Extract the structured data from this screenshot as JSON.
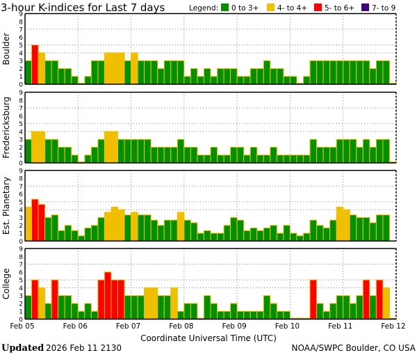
{
  "chart_data": {
    "type": "bar",
    "title": "3-hour K-indices for Last 7 days",
    "legend": {
      "label": "Legend:",
      "placement": "top-right",
      "entries": [
        {
          "label": "0 to 3+",
          "color": "#009000"
        },
        {
          "label": "4- to 4+",
          "color": "#f0c000"
        },
        {
          "label": "5- to 6+",
          "color": "#ff0000"
        },
        {
          "label": "7- to 9",
          "color": "#400080"
        }
      ]
    },
    "xlabel": "Coordinate Universal Time (UTC)",
    "x_ticks": [
      "Feb 05",
      "Feb 06",
      "Feb 07",
      "Feb 08",
      "Feb 09",
      "Feb 10",
      "Feb 11",
      "Feb 12"
    ],
    "bars_per_day": 8,
    "ylim": [
      0,
      9
    ],
    "y_ticks": [
      "0",
      "1",
      "2",
      "3",
      "4",
      "5",
      "6",
      "7",
      "8",
      "9"
    ],
    "grid": {
      "horizontal": [
        4,
        5,
        7
      ],
      "vertical": "daily",
      "style": "dotted"
    },
    "panels": [
      {
        "name": "Boulder",
        "values": [
          3,
          5,
          4,
          3,
          3,
          2,
          2,
          1,
          0,
          1,
          3,
          3,
          4,
          4,
          4,
          3,
          4,
          3,
          3,
          3,
          2,
          3,
          3,
          3,
          1,
          2,
          1,
          2,
          1,
          2,
          2,
          2,
          1,
          1,
          2,
          2,
          3,
          2,
          2,
          1,
          1,
          0,
          1,
          3,
          3,
          3,
          3,
          3,
          3,
          3,
          3,
          3,
          2,
          3,
          3,
          0
        ]
      },
      {
        "name": "Fredericksburg",
        "values": [
          3,
          4,
          4,
          3,
          3,
          2,
          2,
          1,
          0,
          1,
          2,
          3,
          4,
          4,
          3,
          3,
          3,
          3,
          3,
          2,
          2,
          2,
          2,
          3,
          2,
          2,
          1,
          1,
          2,
          1,
          1,
          2,
          2,
          1,
          2,
          1,
          1,
          2,
          1,
          1,
          1,
          1,
          1,
          3,
          2,
          2,
          2,
          3,
          3,
          3,
          2,
          3,
          2,
          3,
          3,
          0
        ]
      },
      {
        "name": "Est. Planetary",
        "values": [
          4.33,
          5.33,
          4.67,
          3,
          3.33,
          1.33,
          2,
          1.33,
          0.67,
          1.67,
          2,
          3,
          3.67,
          4.33,
          4,
          3.33,
          3.67,
          3.33,
          3.33,
          2.67,
          2,
          2.67,
          2.67,
          3.67,
          2.67,
          2.33,
          1,
          1.33,
          1,
          1,
          2,
          3,
          2.67,
          1.33,
          1.67,
          1.33,
          1.67,
          2,
          1,
          2,
          1,
          0.67,
          1,
          2.67,
          2,
          1.67,
          2.67,
          4.33,
          4,
          3.33,
          3,
          3,
          2.33,
          3.33,
          3.33,
          null
        ]
      },
      {
        "name": "College",
        "values": [
          3,
          5,
          4,
          2,
          5,
          3,
          3,
          2,
          1,
          2,
          1,
          5,
          6,
          5,
          5,
          3,
          3,
          3,
          4,
          4,
          3,
          3,
          4,
          1,
          2,
          2,
          0,
          3,
          2,
          1,
          1,
          2,
          1,
          1,
          1,
          1,
          3,
          2,
          1,
          1,
          0,
          0,
          0,
          5,
          2,
          1,
          2,
          3,
          3,
          2,
          3,
          5,
          3,
          5,
          4,
          0
        ]
      }
    ]
  },
  "footer": {
    "updated_label": "Updated",
    "updated_value": "2026 Feb 11 2130",
    "source": "NOAA/SWPC Boulder, CO USA"
  }
}
